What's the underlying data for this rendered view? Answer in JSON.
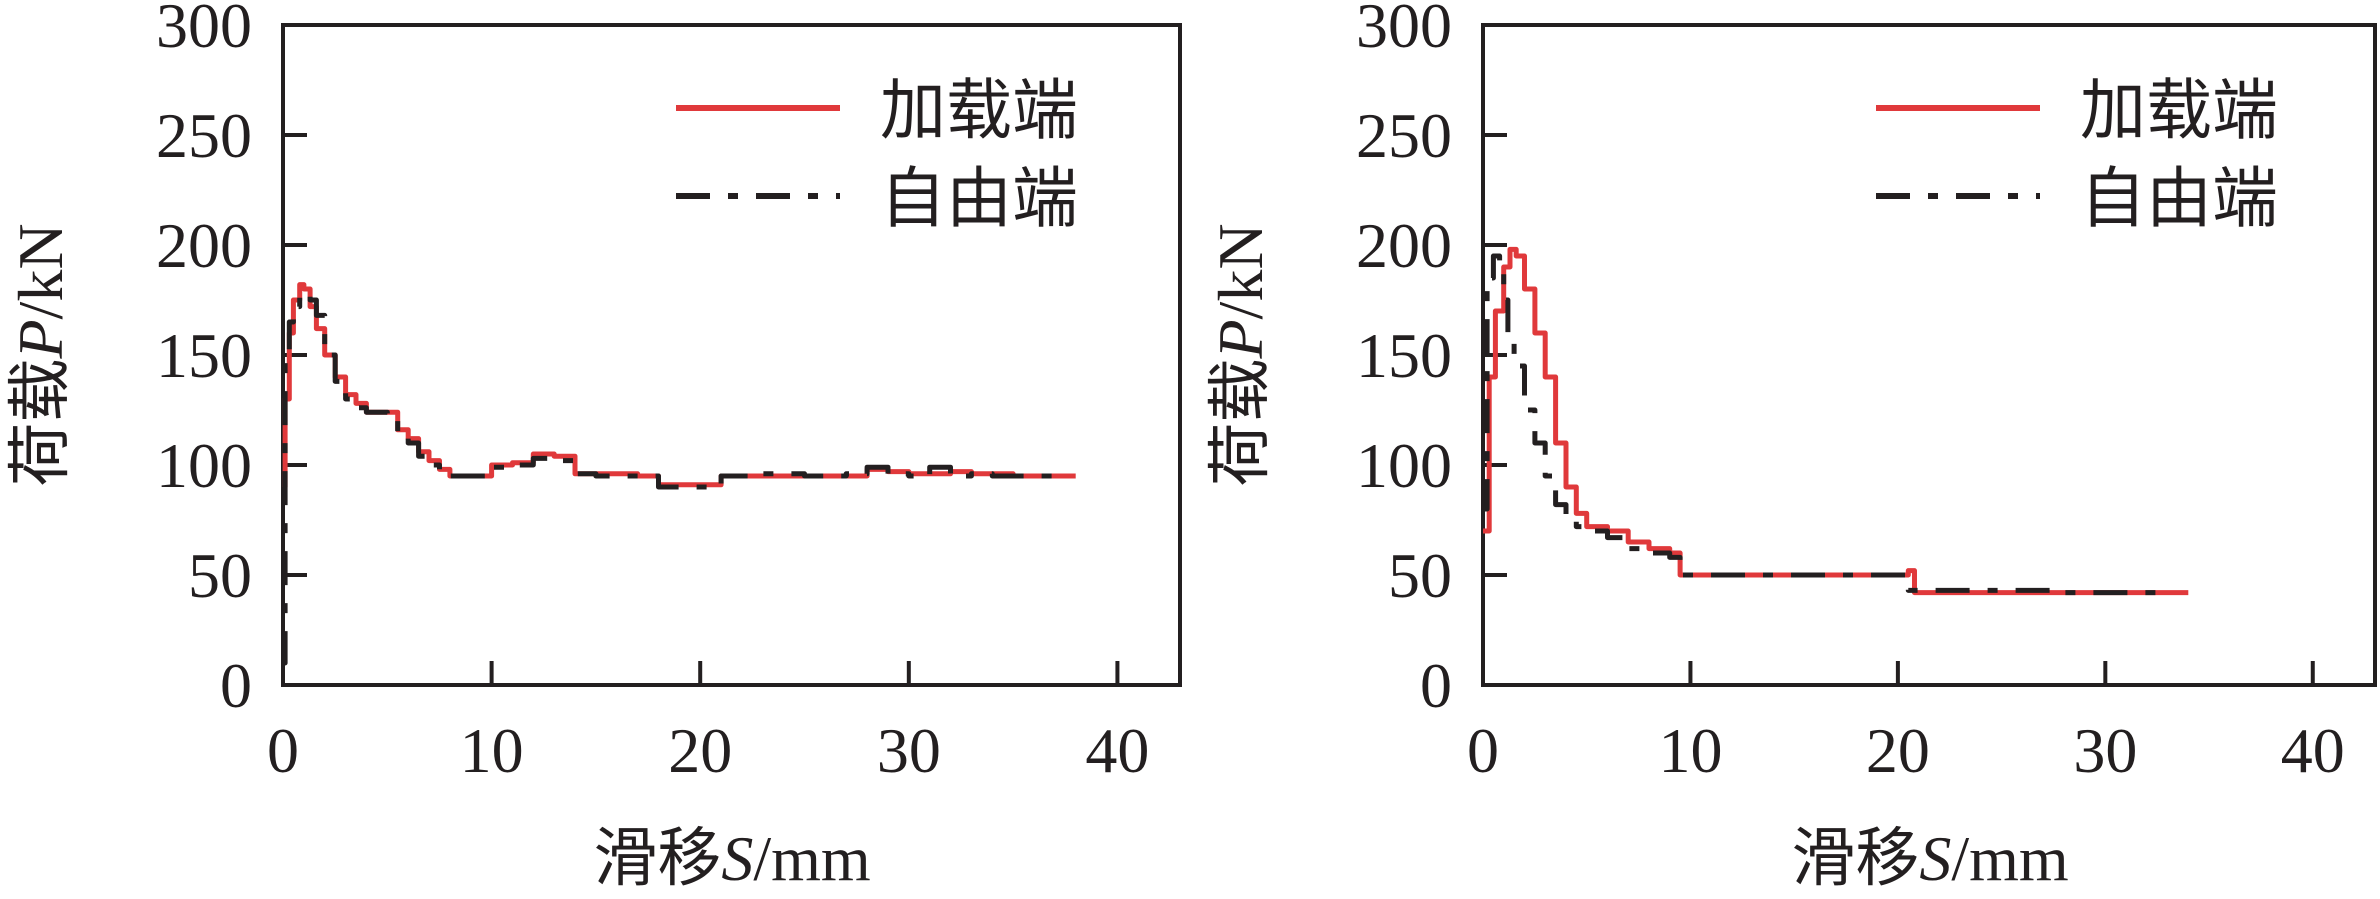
{
  "colors": {
    "loaded_end": "#e0393b",
    "free_end": "#231f20",
    "axis": "#231f20"
  },
  "chart_data": [
    {
      "type": "line",
      "xlabel_prefix": "滑移",
      "xlabel_var": "S",
      "xlabel_unit": "/mm",
      "ylabel_prefix": "荷载",
      "ylabel_var": "P",
      "ylabel_unit": "/kN",
      "xlim": [
        0,
        43
      ],
      "ylim": [
        0,
        300
      ],
      "xticks": [
        "0",
        "10",
        "20",
        "30",
        "40"
      ],
      "yticks": [
        "0",
        "50",
        "100",
        "150",
        "200",
        "250",
        "300"
      ],
      "legend_position": "top-right",
      "series": [
        {
          "name": "加载端",
          "style": "solid",
          "x": [
            0,
            0.1,
            0.3,
            0.5,
            0.8,
            1.0,
            1.3,
            1.6,
            2.0,
            2.5,
            3.0,
            3.5,
            4.0,
            5.0,
            5.5,
            6.0,
            6.5,
            7.0,
            7.5,
            8.0,
            9.0,
            10.0,
            11.0,
            12.0,
            13.0,
            14.0,
            15.0,
            17.0,
            18.0,
            20.0,
            21.0,
            23.0,
            25.0,
            27.0,
            28.0,
            29.0,
            30.0,
            31.0,
            32.0,
            33.0,
            34.0,
            35.0,
            36.0,
            37.0,
            38.0
          ],
          "y": [
            90,
            130,
            160,
            175,
            182,
            180,
            172,
            162,
            150,
            140,
            132,
            128,
            124,
            124,
            116,
            112,
            106,
            102,
            98,
            95,
            95,
            100,
            101,
            105,
            104,
            96,
            96,
            95,
            91,
            91,
            95,
            95,
            95,
            95,
            98,
            97,
            96,
            96,
            97,
            96,
            96,
            95,
            95,
            95,
            95
          ]
        },
        {
          "name": "自由端",
          "style": "dashed",
          "x": [
            0,
            0.1,
            0.3,
            0.5,
            0.8,
            1.0,
            1.3,
            1.6,
            2.0,
            2.5,
            3.0,
            3.5,
            4.0,
            5.0,
            5.5,
            6.0,
            6.5,
            7.0,
            7.5,
            8.0,
            9.0,
            10.0,
            11.0,
            12.0,
            13.0,
            14.0,
            15.0,
            17.0,
            18.0,
            20.0,
            21.0,
            23.0,
            25.0,
            27.0,
            28.0,
            29.0,
            30.0,
            31.0,
            32.0,
            33.0,
            34.0,
            35.0,
            36.0,
            37.0
          ],
          "y": [
            10,
            150,
            165,
            172,
            177,
            178,
            175,
            168,
            150,
            138,
            130,
            126,
            124,
            120,
            114,
            110,
            104,
            100,
            97,
            95,
            95,
            99,
            100,
            103,
            102,
            96,
            95,
            95,
            90,
            90,
            95,
            96,
            95,
            96,
            99,
            96,
            95,
            99,
            95,
            96,
            95,
            95,
            95,
            95
          ]
        }
      ]
    },
    {
      "type": "line",
      "xlabel_prefix": "滑移",
      "xlabel_var": "S",
      "xlabel_unit": "/mm",
      "ylabel_prefix": "荷载",
      "ylabel_var": "P",
      "ylabel_unit": "/kN",
      "xlim": [
        0,
        43
      ],
      "ylim": [
        0,
        300
      ],
      "xticks": [
        "0",
        "10",
        "20",
        "30",
        "40"
      ],
      "yticks": [
        "0",
        "50",
        "100",
        "150",
        "200",
        "250",
        "300"
      ],
      "legend_position": "top-right",
      "series": [
        {
          "name": "加载端",
          "style": "solid",
          "x": [
            0,
            0.3,
            0.6,
            1.0,
            1.3,
            1.6,
            2.0,
            2.5,
            3.0,
            3.5,
            4.0,
            4.5,
            5.0,
            6.0,
            7.0,
            8.0,
            9.0,
            9.5,
            10.0,
            12.0,
            15.0,
            18.0,
            20.0,
            20.5,
            20.8,
            21.0,
            22.0,
            25.0,
            28.0,
            30.0,
            32.0,
            34.0
          ],
          "y": [
            70,
            140,
            170,
            190,
            198,
            195,
            180,
            160,
            140,
            110,
            90,
            78,
            72,
            70,
            65,
            62,
            60,
            50,
            50,
            50,
            50,
            50,
            50,
            52,
            42,
            42,
            42,
            42,
            42,
            42,
            42,
            42
          ]
        },
        {
          "name": "自由端",
          "style": "dashed",
          "x": [
            0,
            0.2,
            0.5,
            0.8,
            1.0,
            1.2,
            1.5,
            2.0,
            2.5,
            3.0,
            3.5,
            4.0,
            4.5,
            5.0,
            6.0,
            7.0,
            8.0,
            9.0,
            9.5,
            10.0,
            12.0,
            15.0,
            18.0,
            20.0,
            20.5,
            21.0,
            23.0,
            25.0,
            28.0,
            30.0,
            32.0,
            33.0
          ],
          "y": [
            80,
            185,
            195,
            190,
            175,
            160,
            145,
            125,
            110,
            95,
            82,
            75,
            72,
            70,
            67,
            62,
            60,
            58,
            50,
            50,
            50,
            50,
            50,
            50,
            43,
            43,
            43,
            43,
            42,
            42,
            42,
            42
          ]
        }
      ]
    }
  ]
}
